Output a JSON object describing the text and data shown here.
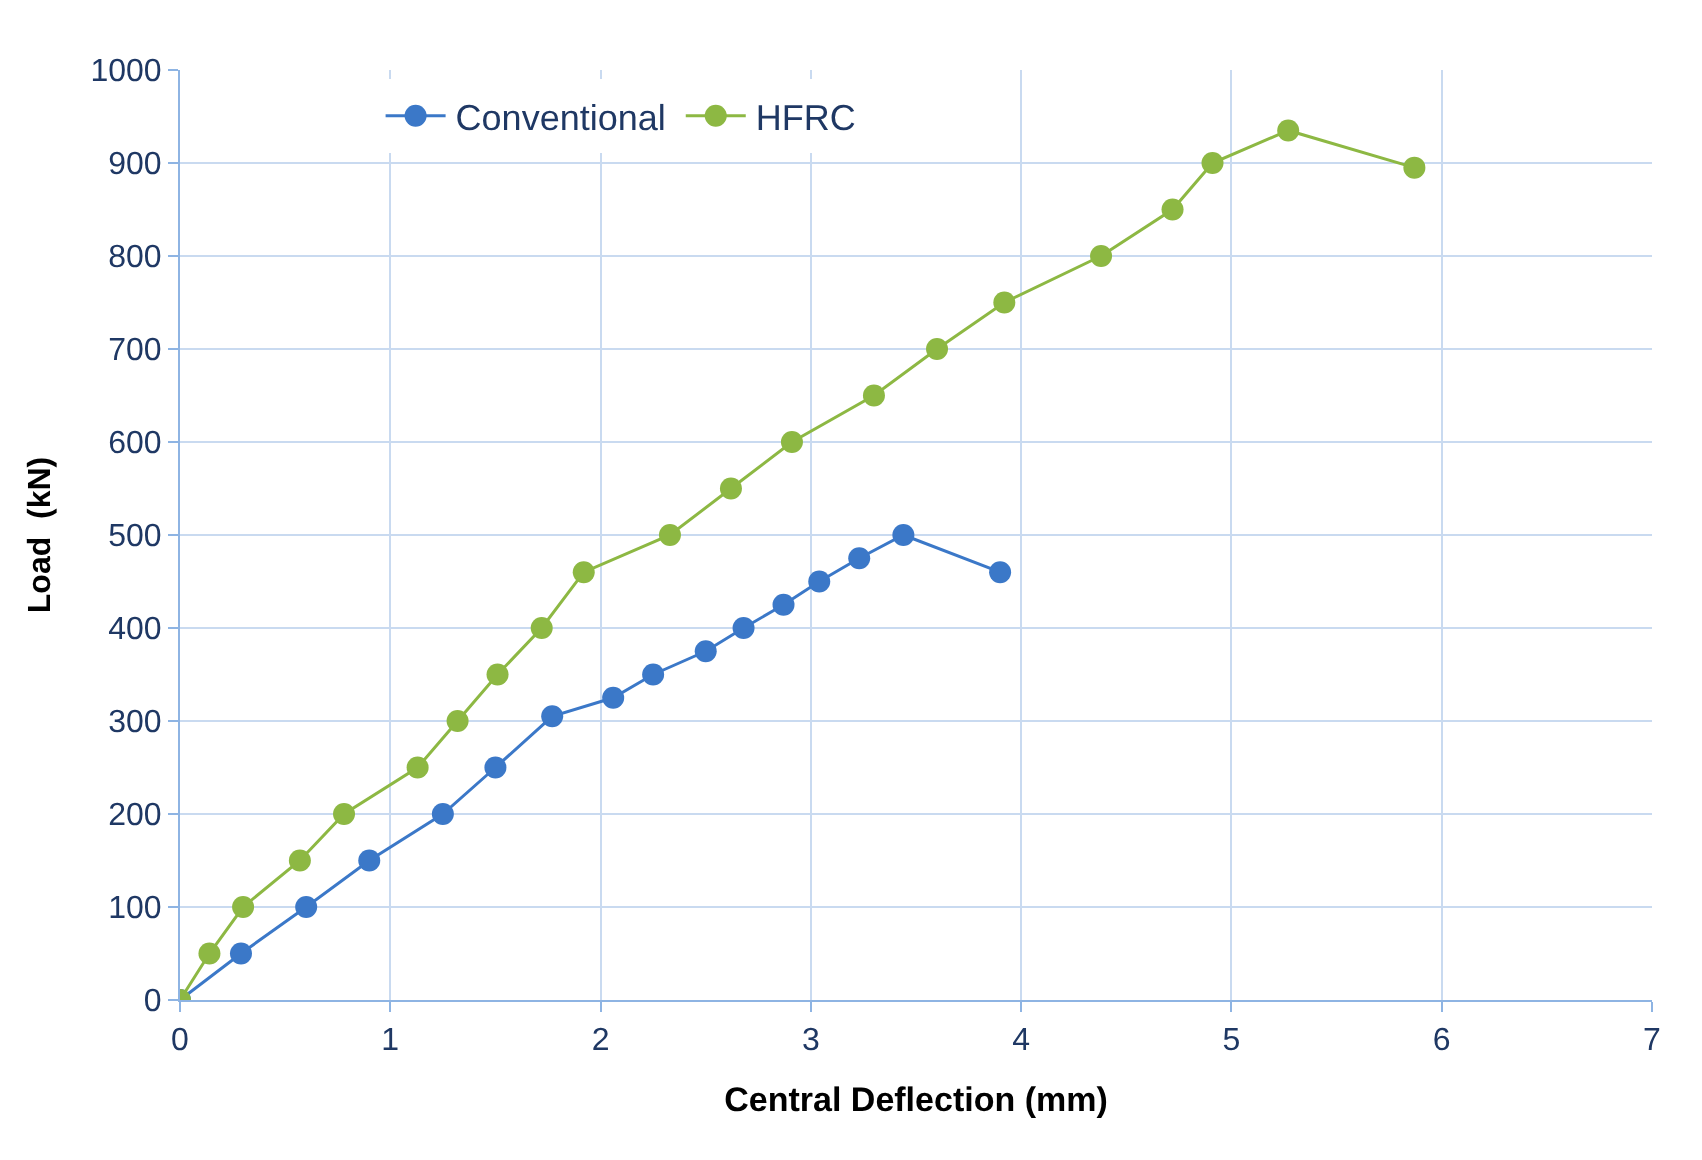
{
  "chart_data": {
    "type": "line",
    "xlabel": "Central Deflection (mm)",
    "ylabel": "Load  (kN)",
    "xlim": [
      0,
      7
    ],
    "xticks": [
      0,
      1,
      2,
      3,
      4,
      5,
      6,
      7
    ],
    "ylim": [
      0,
      1000
    ],
    "yticks": [
      0,
      100,
      200,
      300,
      400,
      500,
      600,
      700,
      800,
      900,
      1000
    ],
    "grid": true,
    "legend": "top",
    "marker": "circle",
    "line_style": "solid",
    "series": [
      {
        "name": "Conventional",
        "color": "#3b78c8",
        "x": [
          0,
          0.29,
          0.6,
          0.9,
          1.25,
          1.5,
          1.77,
          2.06,
          2.25,
          2.5,
          2.68,
          2.87,
          3.04,
          3.23,
          3.44,
          3.9
        ],
        "values": [
          0,
          50,
          100,
          150,
          200,
          250,
          305,
          325,
          350,
          375,
          400,
          425,
          450,
          475,
          500,
          460
        ]
      },
      {
        "name": "HFRC",
        "color": "#8db843",
        "x": [
          0,
          0.14,
          0.3,
          0.57,
          0.78,
          1.13,
          1.32,
          1.51,
          1.72,
          1.92,
          2.33,
          2.62,
          2.91,
          3.3,
          3.6,
          3.92,
          4.38,
          4.72,
          4.91,
          5.27,
          5.87
        ],
        "values": [
          0,
          50,
          100,
          150,
          200,
          250,
          300,
          350,
          400,
          460,
          500,
          550,
          600,
          650,
          700,
          750,
          800,
          850,
          900,
          935,
          895
        ]
      }
    ]
  }
}
